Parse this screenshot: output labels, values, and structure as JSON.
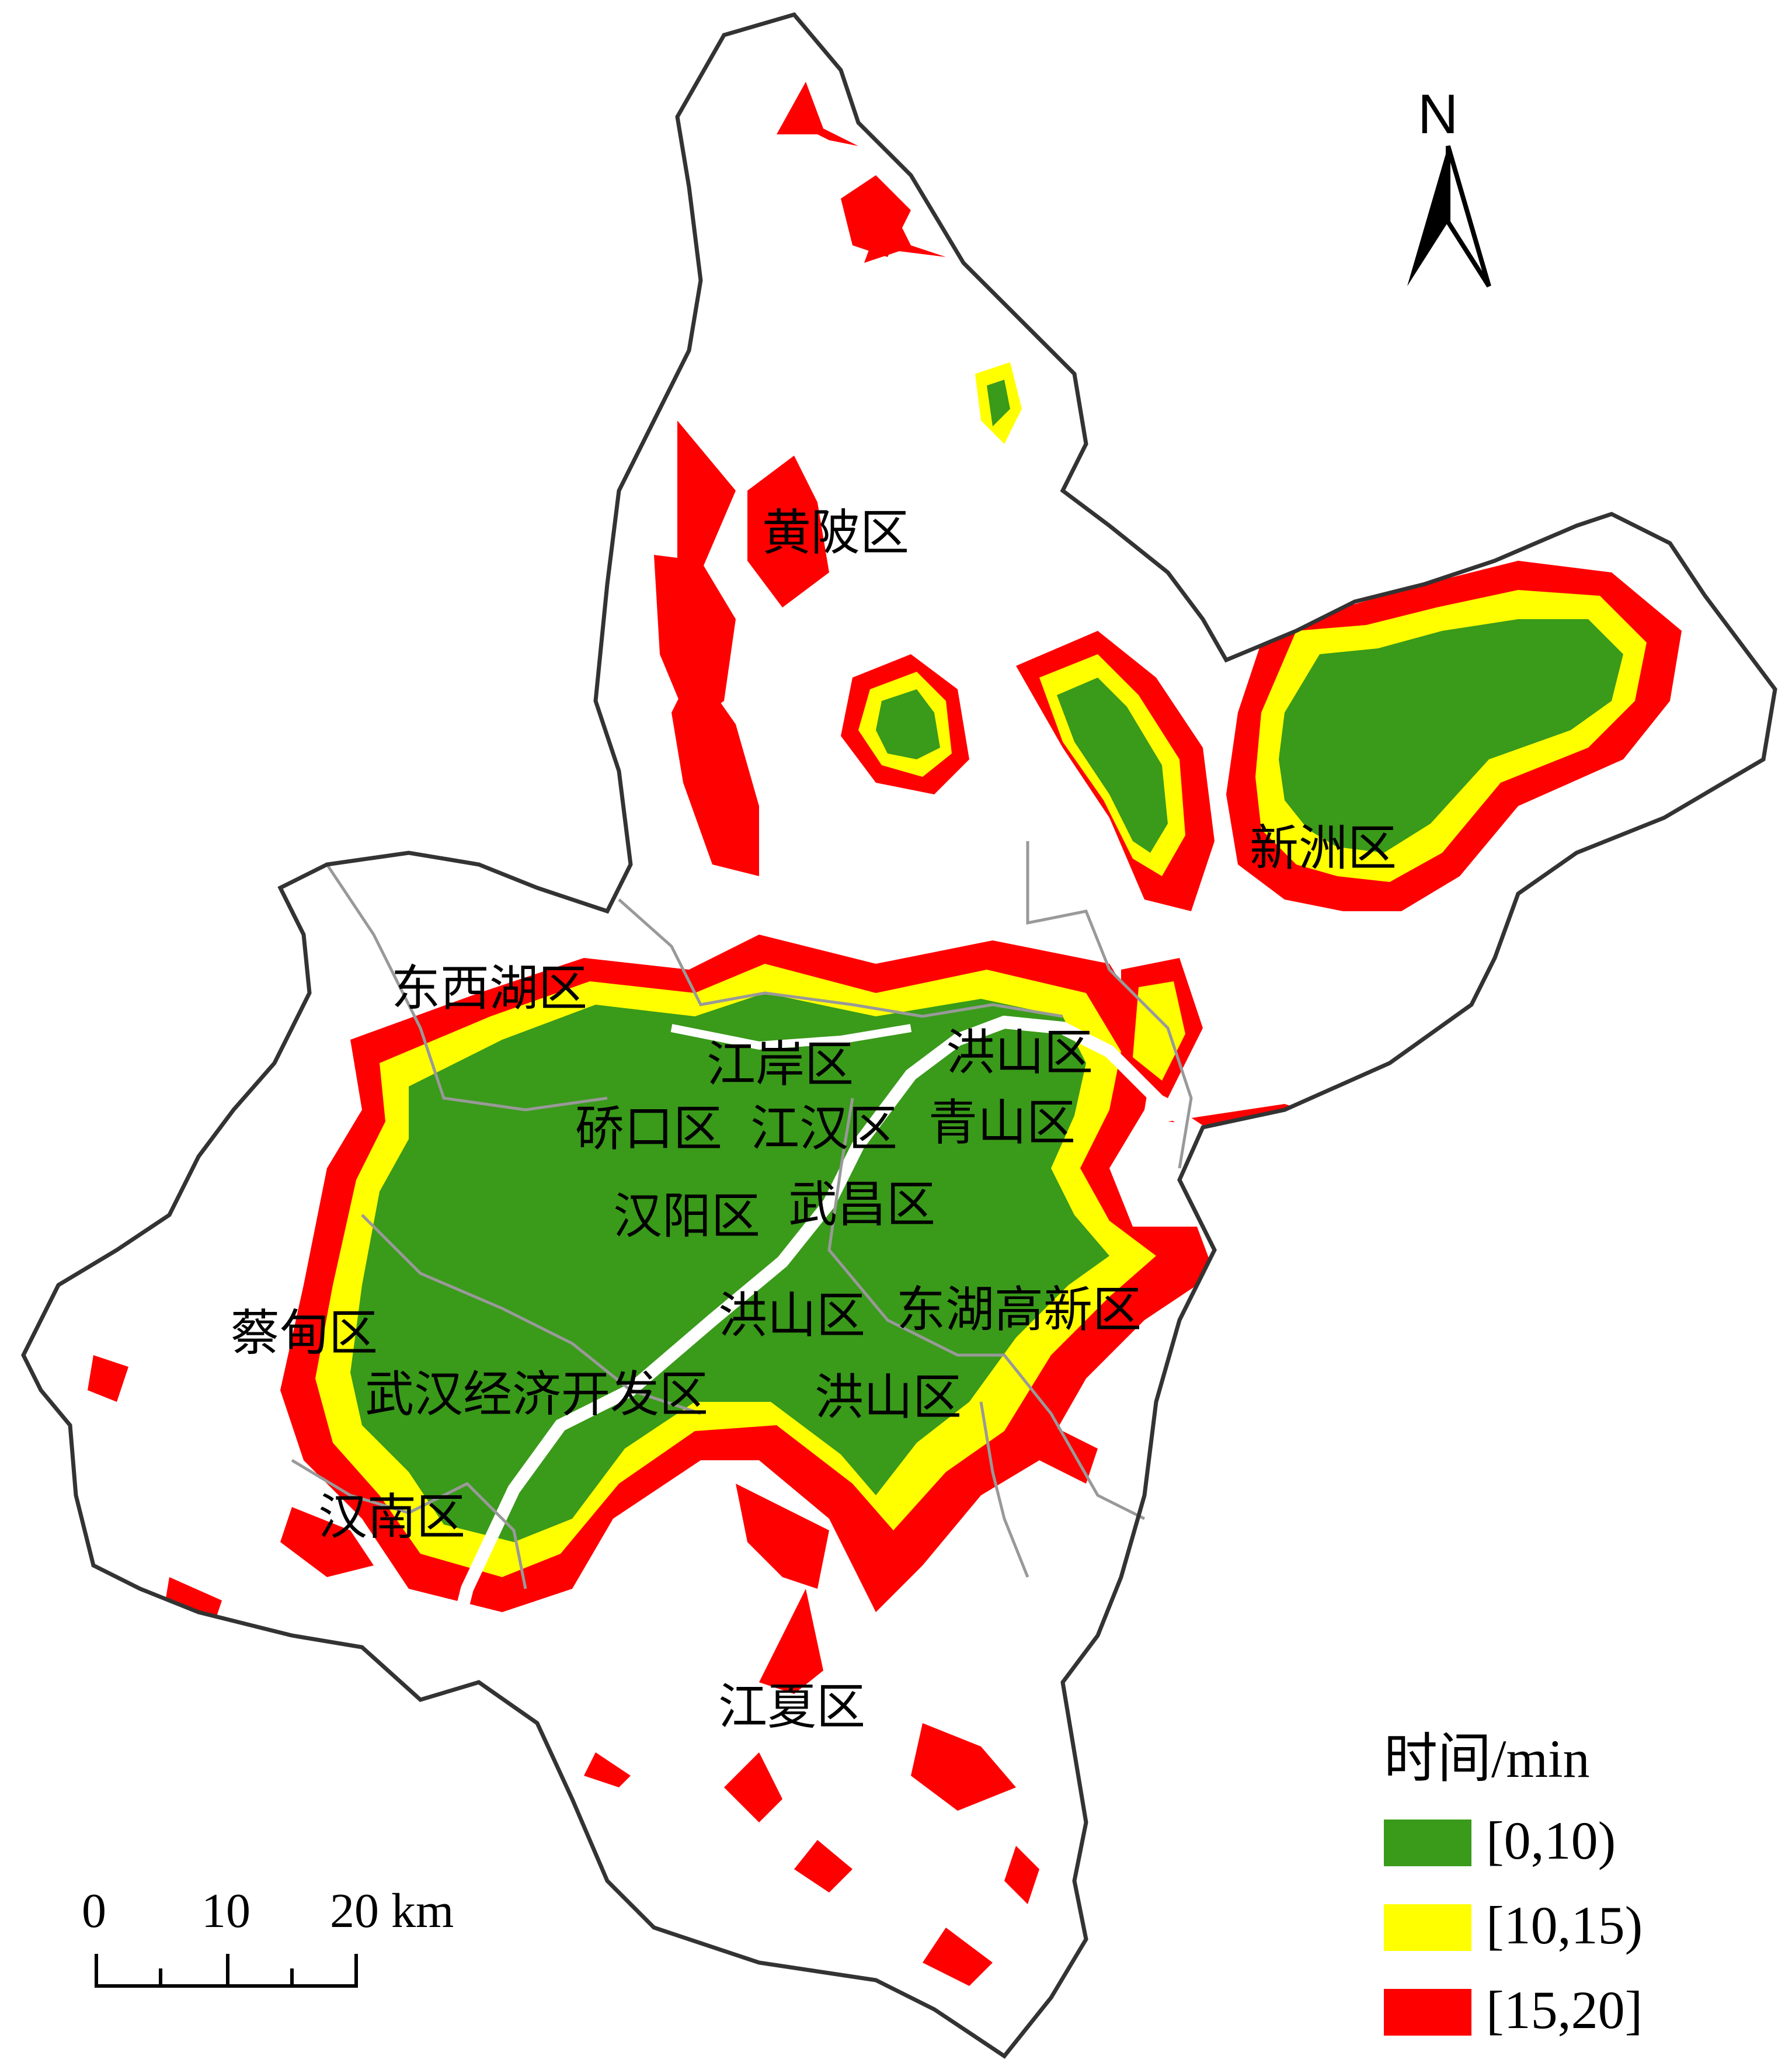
{
  "map": {
    "district_labels": {
      "huangpi": "黄陂区",
      "xinzhou": "新洲区",
      "dongxihu": "东西湖区",
      "jiangan": "江岸区",
      "hongshan_north": "洪山区",
      "qiaokou": "硚口区",
      "jianghan": "江汉区",
      "qingshan": "青山区",
      "hanyang": "汉阳区",
      "wuchang": "武昌区",
      "hongshan_middle": "洪山区",
      "donghu": "东湖高新区",
      "caidian": "蔡甸区",
      "wuhan_econ": "武汉经济开发区",
      "hongshan_south": "洪山区",
      "hannan": "汉南区",
      "jiangxia": "江夏区"
    },
    "north_arrow": {
      "label": "N",
      "icon": "north-arrow-icon"
    },
    "legend": {
      "title": "时间/min",
      "items": [
        {
          "label": "[0,10)",
          "color": "#3a9a1a"
        },
        {
          "label": "[10,15)",
          "color": "#ffff00"
        },
        {
          "label": "[15,20]",
          "color": "#ff0000"
        }
      ]
    },
    "scale_bar": {
      "labels": [
        "0",
        "10",
        "20 km"
      ]
    },
    "colors": {
      "boundary": "#333333",
      "inner_boundary": "#999999",
      "river": "#ffffff"
    }
  }
}
